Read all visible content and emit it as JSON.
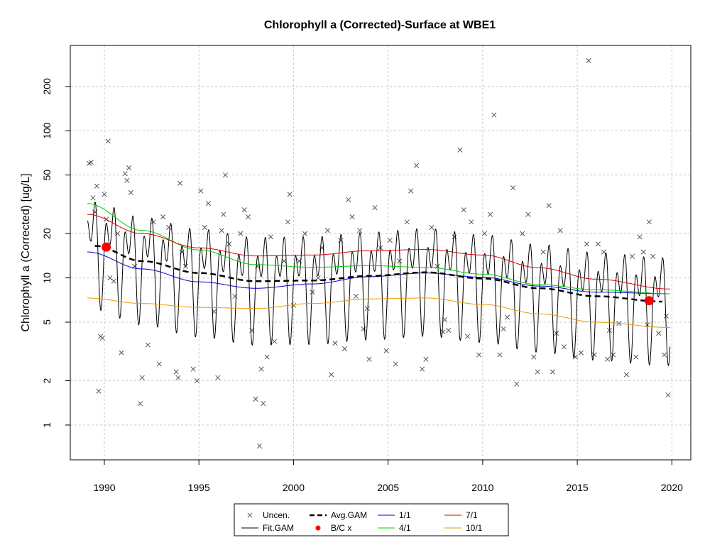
{
  "chart_data": {
    "type": "scatter",
    "title": "Chlorophyll a (Corrected)-Surface at WBE1",
    "xlabel": "",
    "ylabel": "Chlorophyll a (Corrected) [ug/L]",
    "yscale": "log",
    "xlim": [
      1988.2,
      2021.0
    ],
    "ylim": [
      0.58,
      380
    ],
    "x_ticks": [
      1990,
      1995,
      2000,
      2005,
      2010,
      2015,
      2020
    ],
    "x_tick_labels": [
      "1990",
      "1995",
      "2000",
      "2005",
      "2010",
      "2015",
      "2020"
    ],
    "y_ticks": [
      1,
      2,
      5,
      10,
      20,
      50,
      100,
      200
    ],
    "y_tick_labels": [
      "1",
      "2",
      "5",
      "10",
      "20",
      "50",
      "100",
      "200"
    ],
    "grid": true,
    "legend_position": "bottom-center",
    "legend": [
      {
        "label": "Uncen.",
        "kind": "x-marker",
        "color": "#555555"
      },
      {
        "label": "Avg.GAM",
        "kind": "dashed-line",
        "color": "#000000"
      },
      {
        "label": "1/1",
        "kind": "line",
        "color": "#0000cc"
      },
      {
        "label": "7/1",
        "kind": "line",
        "color": "#dd0000"
      },
      {
        "label": "Fit.GAM",
        "kind": "line",
        "color": "#000000"
      },
      {
        "label": "B/C x",
        "kind": "dot",
        "color": "#ff0000"
      },
      {
        "label": "4/1",
        "kind": "line",
        "color": "#00cc00"
      },
      {
        "label": "10/1",
        "kind": "line",
        "color": "#ee9900"
      }
    ],
    "series": [
      {
        "name": "Uncen.",
        "type": "scatter",
        "color": "#555555",
        "points": [
          [
            1989.2,
            60
          ],
          [
            1989.3,
            61
          ],
          [
            1989.4,
            35
          ],
          [
            1989.5,
            28
          ],
          [
            1989.6,
            42
          ],
          [
            1989.7,
            1.7
          ],
          [
            1989.8,
            4.0
          ],
          [
            1989.9,
            3.9
          ],
          [
            1990.0,
            37
          ],
          [
            1990.1,
            25
          ],
          [
            1990.2,
            85
          ],
          [
            1990.3,
            10
          ],
          [
            1990.5,
            9.5
          ],
          [
            1990.7,
            20
          ],
          [
            1990.9,
            3.1
          ],
          [
            1991.1,
            51
          ],
          [
            1991.2,
            46
          ],
          [
            1991.3,
            56
          ],
          [
            1991.4,
            38
          ],
          [
            1991.6,
            12
          ],
          [
            1991.9,
            1.4
          ],
          [
            1992.0,
            2.1
          ],
          [
            1992.3,
            3.5
          ],
          [
            1992.6,
            24
          ],
          [
            1992.9,
            2.6
          ],
          [
            1993.1,
            26
          ],
          [
            1993.4,
            22
          ],
          [
            1993.8,
            2.3
          ],
          [
            1993.9,
            2.1
          ],
          [
            1994.0,
            44
          ],
          [
            1994.1,
            15
          ],
          [
            1994.3,
            12
          ],
          [
            1994.7,
            2.4
          ],
          [
            1994.9,
            2.0
          ],
          [
            1995.1,
            39
          ],
          [
            1995.3,
            22
          ],
          [
            1995.5,
            32
          ],
          [
            1995.8,
            5.9
          ],
          [
            1996.0,
            2.1
          ],
          [
            1996.2,
            21
          ],
          [
            1996.3,
            27
          ],
          [
            1996.4,
            50
          ],
          [
            1996.6,
            17
          ],
          [
            1996.9,
            7.5
          ],
          [
            1997.2,
            20
          ],
          [
            1997.4,
            29
          ],
          [
            1997.6,
            26
          ],
          [
            1997.8,
            4.4
          ],
          [
            1998.0,
            1.5
          ],
          [
            1998.1,
            12
          ],
          [
            1998.2,
            0.72
          ],
          [
            1998.3,
            2.4
          ],
          [
            1998.4,
            1.4
          ],
          [
            1998.6,
            2.9
          ],
          [
            1998.8,
            19
          ],
          [
            1999.0,
            3.7
          ],
          [
            1999.5,
            13
          ],
          [
            1999.7,
            24
          ],
          [
            1999.8,
            37
          ],
          [
            2000.0,
            6.5
          ],
          [
            2000.3,
            13
          ],
          [
            2000.6,
            20
          ],
          [
            2001.0,
            8
          ],
          [
            2001.3,
            10
          ],
          [
            2001.5,
            16
          ],
          [
            2001.8,
            21
          ],
          [
            2002.0,
            2.2
          ],
          [
            2002.2,
            3.6
          ],
          [
            2002.5,
            18
          ],
          [
            2002.7,
            3.3
          ],
          [
            2002.9,
            34
          ],
          [
            2003.1,
            26
          ],
          [
            2003.3,
            7.5
          ],
          [
            2003.5,
            21
          ],
          [
            2003.7,
            4.5
          ],
          [
            2004.0,
            2.8
          ],
          [
            2004.3,
            30
          ],
          [
            2004.6,
            16
          ],
          [
            2004.9,
            3.2
          ],
          [
            2005.1,
            18
          ],
          [
            2005.4,
            2.6
          ],
          [
            2005.6,
            13
          ],
          [
            2006.0,
            24
          ],
          [
            2006.2,
            39
          ],
          [
            2006.5,
            58
          ],
          [
            2006.8,
            2.4
          ],
          [
            2007.0,
            2.8
          ],
          [
            2007.3,
            22
          ],
          [
            2007.6,
            12
          ],
          [
            2007.9,
            4.3
          ],
          [
            2008.2,
            4.4
          ],
          [
            2008.5,
            19
          ],
          [
            2008.8,
            74
          ],
          [
            2009.0,
            29
          ],
          [
            2009.2,
            4.0
          ],
          [
            2009.4,
            24
          ],
          [
            2009.8,
            3.0
          ],
          [
            2010.1,
            20
          ],
          [
            2010.4,
            27
          ],
          [
            2010.6,
            128
          ],
          [
            2010.9,
            3.0
          ],
          [
            2011.3,
            5.4
          ],
          [
            2011.6,
            41
          ],
          [
            2011.8,
            1.9
          ],
          [
            2012.1,
            20
          ],
          [
            2012.4,
            27
          ],
          [
            2012.7,
            2.9
          ],
          [
            2012.9,
            2.3
          ],
          [
            2013.2,
            15
          ],
          [
            2013.5,
            31
          ],
          [
            2013.7,
            2.3
          ],
          [
            2014.1,
            21
          ],
          [
            2014.3,
            3.4
          ],
          [
            2014.9,
            2.9
          ],
          [
            2015.2,
            3.1
          ],
          [
            2015.5,
            17
          ],
          [
            2015.6,
            300
          ],
          [
            2015.9,
            3.0
          ],
          [
            2016.1,
            17
          ],
          [
            2016.4,
            15
          ],
          [
            2016.7,
            4.4
          ],
          [
            2016.9,
            3.0
          ],
          [
            2017.2,
            4.9
          ],
          [
            2017.6,
            2.2
          ],
          [
            2017.9,
            14
          ],
          [
            2018.1,
            2.9
          ],
          [
            2018.3,
            19
          ],
          [
            2018.5,
            15
          ],
          [
            2018.8,
            24
          ],
          [
            2019.0,
            14
          ],
          [
            2019.3,
            4.2
          ],
          [
            2019.6,
            3.0
          ],
          [
            2019.8,
            1.6
          ],
          [
            2019.7,
            5.5
          ],
          [
            2018.7,
            4.8
          ],
          [
            2016.6,
            2.8
          ],
          [
            2013.9,
            4.2
          ],
          [
            2011.1,
            4.5
          ],
          [
            2008.0,
            5.2
          ],
          [
            2003.9,
            6.2
          ]
        ]
      },
      {
        "name": "Fit.GAM",
        "type": "line",
        "color": "#000000",
        "x_range": [
          1989.1,
          2019.9
        ],
        "seasonal_amplitude_log10": 0.34
      },
      {
        "name": "Avg.GAM",
        "type": "line",
        "color": "#000000",
        "x": [
          1989.5,
          1992,
          1995,
          1998,
          2001,
          2004,
          2007,
          2010,
          2013,
          2016,
          2019.5
        ],
        "y": [
          16.5,
          13.0,
          10.8,
          9.5,
          9.6,
          10.3,
          10.9,
          9.9,
          8.5,
          7.5,
          6.9
        ]
      },
      {
        "name": "1/1",
        "type": "line",
        "color": "#0000cc",
        "x": [
          1989.1,
          1992,
          1995,
          1998,
          2001,
          2004,
          2007,
          2010,
          2013,
          2016,
          2019.9
        ],
        "y": [
          15.0,
          11.5,
          9.4,
          8.5,
          9.1,
          10.2,
          10.8,
          10.1,
          8.8,
          8.0,
          7.8
        ]
      },
      {
        "name": "4/1",
        "type": "line",
        "color": "#00cc00",
        "x": [
          1989.1,
          1992,
          1995,
          1998,
          2001,
          2004,
          2007,
          2010,
          2013,
          2016,
          2019.9
        ],
        "y": [
          32.0,
          21.0,
          15.5,
          12.3,
          11.8,
          12.1,
          11.8,
          10.6,
          9.0,
          8.3,
          7.8
        ]
      },
      {
        "name": "7/1",
        "type": "line",
        "color": "#dd0000",
        "x": [
          1989.1,
          1992,
          1995,
          1998,
          2001,
          2004,
          2007,
          2010,
          2013,
          2016,
          2019.9
        ],
        "y": [
          27.0,
          20.0,
          16.0,
          14.1,
          14.3,
          15.3,
          15.6,
          14.3,
          11.7,
          9.8,
          8.4
        ]
      },
      {
        "name": "10/1",
        "type": "line",
        "color": "#ee9900",
        "x": [
          1989.1,
          1992,
          1995,
          1998,
          2001,
          2004,
          2007,
          2010,
          2013,
          2016,
          2019.9
        ],
        "y": [
          7.3,
          6.7,
          6.3,
          6.2,
          6.7,
          7.2,
          7.3,
          6.6,
          5.7,
          5.0,
          4.6
        ]
      },
      {
        "name": "B/C x",
        "type": "scatter",
        "color": "#ff0000",
        "points": [
          [
            1990.1,
            16.2
          ],
          [
            2018.8,
            7.0
          ]
        ]
      }
    ]
  }
}
